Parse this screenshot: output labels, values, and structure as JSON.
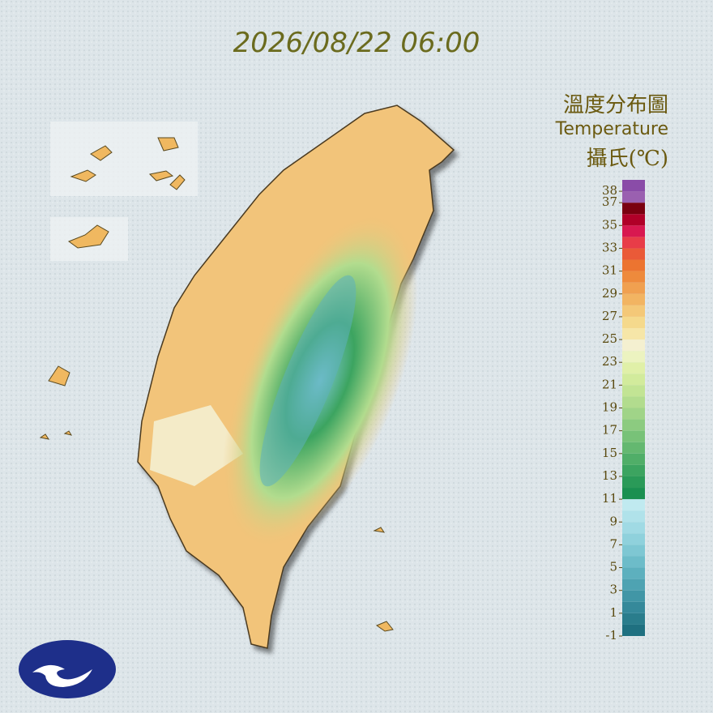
{
  "title": "2026/08/22 06:00",
  "legend": {
    "title": "溫度分布圖",
    "subtitle": "Temperature",
    "unit": "攝氏(℃)",
    "range": [
      -1,
      39
    ],
    "ticks": [
      38,
      37,
      35,
      33,
      31,
      29,
      27,
      25,
      23,
      21,
      19,
      17,
      15,
      13,
      11,
      9,
      7,
      5,
      3,
      1,
      -1
    ],
    "colors": [
      "#1f7080",
      "#2a7d8c",
      "#35899a",
      "#4196a6",
      "#4ea3b2",
      "#5db0be",
      "#6dbcc9",
      "#7ec7d3",
      "#8fd1dc",
      "#a0dae4",
      "#b0e2ea",
      "#c0eaf0",
      "#1a9050",
      "#2a9a58",
      "#3ca460",
      "#50ae68",
      "#64b870",
      "#78c278",
      "#8ccb80",
      "#a0d488",
      "#b2dc8e",
      "#c2e494",
      "#d2eb9c",
      "#e0f0a8",
      "#ecf3c0",
      "#f4f0d0",
      "#f6e6a8",
      "#f5d98c",
      "#f4c878",
      "#f2b462",
      "#f0a050",
      "#ee8a3c",
      "#ec7430",
      "#ea5a38",
      "#e83c48",
      "#d81850",
      "#b00028",
      "#7a0010",
      "#9a60b0",
      "#8a4ca8"
    ]
  }
}
